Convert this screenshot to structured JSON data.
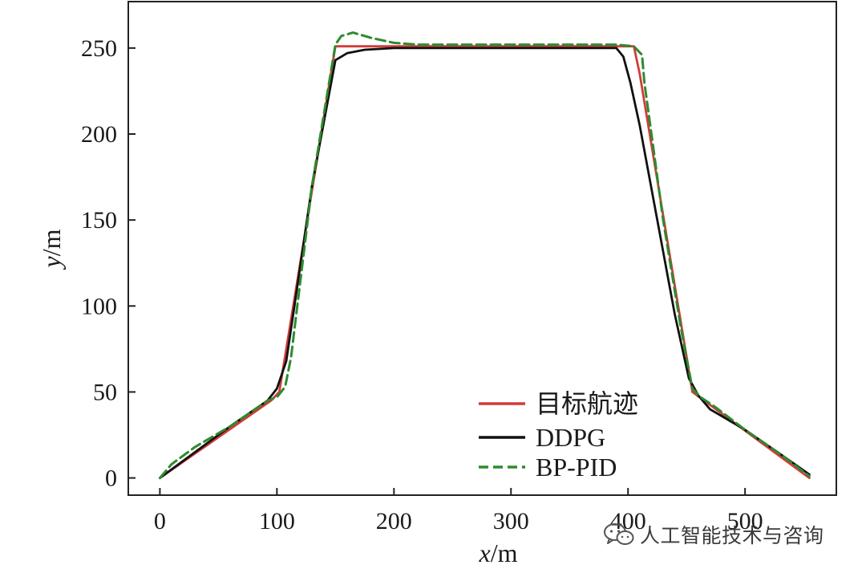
{
  "chart_data": {
    "type": "line",
    "xlabel": "x/m",
    "ylabel": "y/m",
    "xlim": [
      -27,
      578
    ],
    "ylim": [
      -10,
      277
    ],
    "x_ticks": [
      0,
      100,
      200,
      300,
      400,
      500
    ],
    "y_ticks": [
      0,
      50,
      100,
      150,
      200,
      250
    ],
    "grid": false,
    "legend_position": "bottom-center",
    "series": [
      {
        "name": "目标航迹",
        "color": "#d43a3a",
        "style": "solid",
        "x": [
          0,
          95,
          102,
          150,
          405,
          410,
          455,
          555
        ],
        "y": [
          0,
          45,
          50,
          251,
          251,
          235,
          50,
          0
        ]
      },
      {
        "name": "DDPG",
        "color": "#111111",
        "style": "solid",
        "x": [
          0,
          30,
          60,
          92,
          100,
          108,
          115,
          130,
          150,
          160,
          175,
          200,
          250,
          300,
          350,
          390,
          396,
          402,
          410,
          425,
          440,
          452,
          460,
          470,
          500,
          530,
          555
        ],
        "y": [
          0,
          15,
          30,
          45,
          52,
          68,
          100,
          170,
          243,
          247,
          249,
          250,
          250,
          250,
          250,
          250,
          245,
          230,
          205,
          150,
          95,
          58,
          48,
          40,
          28,
          14,
          2
        ]
      },
      {
        "name": "BP-PID",
        "color": "#2e8b2e",
        "style": "dashed",
        "x": [
          0,
          10,
          30,
          60,
          92,
          100,
          107,
          112,
          130,
          150,
          155,
          165,
          180,
          200,
          220,
          300,
          390,
          405,
          412,
          414,
          418,
          430,
          445,
          455,
          462,
          475,
          500,
          530,
          555
        ],
        "y": [
          0,
          8,
          18,
          30,
          45,
          47,
          53,
          70,
          170,
          252,
          257,
          259,
          256,
          253,
          252,
          252,
          252,
          251,
          246,
          230,
          210,
          150,
          88,
          52,
          47,
          41,
          28,
          14,
          1
        ]
      }
    ]
  },
  "watermark": {
    "text": "人工智能技术与咨询",
    "icon": "wechat-icon"
  }
}
